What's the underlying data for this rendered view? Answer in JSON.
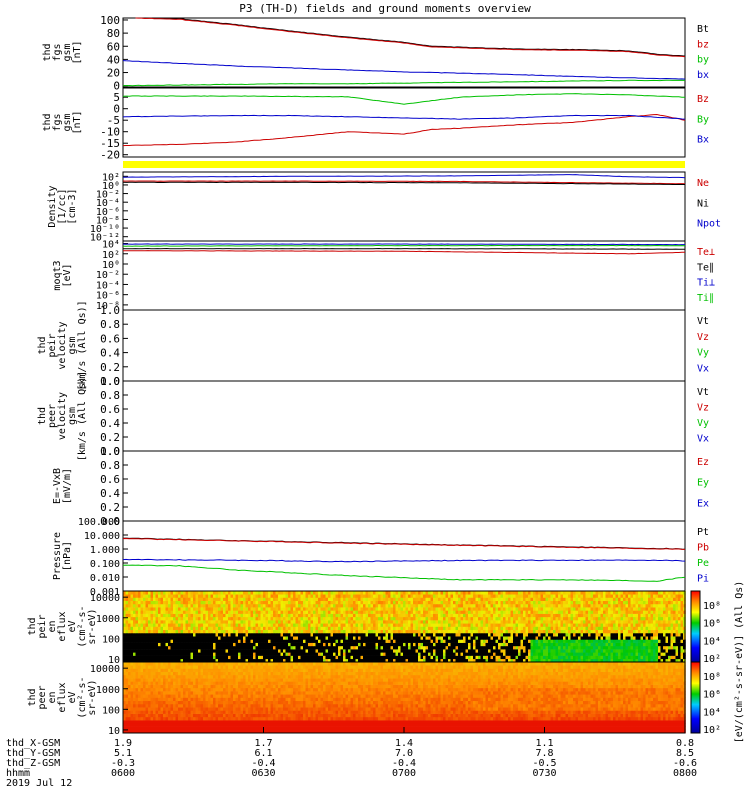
{
  "title": "P3 (TH-D) fields and ground moments overview",
  "colors": {
    "black": "#000000",
    "red": "#cc0000",
    "green": "#00c000",
    "blue": "#0000cc",
    "yellow": "#ffff00"
  },
  "chart_data": [
    {
      "type": "line",
      "id": "fgs-mag",
      "ylabel": [
        "thd",
        "fgs",
        "gsm",
        "[nT]"
      ],
      "yticks": [
        0,
        20,
        40,
        60,
        80,
        100
      ],
      "ylim": [
        -2,
        103
      ],
      "legend": [
        {
          "label": "Bt",
          "color": "black"
        },
        {
          "label": "bz",
          "color": "red"
        },
        {
          "label": "by",
          "color": "green"
        },
        {
          "label": "bx",
          "color": "blue"
        }
      ],
      "series": [
        {
          "name": "Bt",
          "color": "black",
          "x": [
            0.02,
            0.1,
            0.2,
            0.3,
            0.4,
            0.5,
            0.55,
            0.62,
            0.7,
            0.8,
            0.9,
            0.95,
            1.0
          ],
          "y": [
            103,
            102,
            93,
            83,
            74,
            66,
            60,
            58,
            56,
            55,
            53,
            48,
            45
          ]
        },
        {
          "name": "bz",
          "color": "red",
          "x": [
            0.02,
            0.1,
            0.2,
            0.3,
            0.4,
            0.5,
            0.55,
            0.62,
            0.7,
            0.8,
            0.9,
            0.95,
            1.0
          ],
          "y": [
            103,
            101,
            92,
            82,
            73,
            65,
            59,
            57,
            55,
            54,
            52,
            47,
            44
          ]
        },
        {
          "name": "by",
          "color": "green",
          "x": [
            0,
            0.1,
            0.2,
            0.3,
            0.4,
            0.5,
            0.6,
            0.7,
            0.8,
            0.9,
            1.0
          ],
          "y": [
            0,
            1,
            2,
            3,
            3,
            4,
            5,
            6,
            7,
            8,
            8
          ]
        },
        {
          "name": "bx",
          "color": "blue",
          "x": [
            0,
            0.1,
            0.2,
            0.3,
            0.4,
            0.5,
            0.6,
            0.7,
            0.8,
            0.9,
            1.0
          ],
          "y": [
            38,
            34,
            30,
            27,
            24,
            21,
            19,
            17,
            14,
            12,
            10
          ]
        }
      ]
    },
    {
      "type": "line",
      "id": "fgs-mag2",
      "ylabel": [
        "thd",
        "fgs",
        "gsm",
        "[nT]"
      ],
      "yticks": [
        -20,
        -15,
        -10,
        -5,
        0,
        5
      ],
      "ylim": [
        -21,
        9
      ],
      "legend": [
        {
          "label": "Bz",
          "color": "red"
        },
        {
          "label": "By",
          "color": "green"
        },
        {
          "label": "Bx",
          "color": "blue"
        }
      ],
      "series": [
        {
          "name": "Bz",
          "color": "red",
          "x": [
            0,
            0.1,
            0.2,
            0.3,
            0.4,
            0.5,
            0.55,
            0.6,
            0.7,
            0.8,
            0.9,
            0.95,
            1.0
          ],
          "y": [
            -16,
            -15.5,
            -14.5,
            -12.5,
            -10,
            -11,
            -9,
            -8.5,
            -7,
            -6,
            -3.5,
            -2.5,
            -5
          ]
        },
        {
          "name": "By",
          "color": "green",
          "x": [
            0,
            0.1,
            0.2,
            0.3,
            0.4,
            0.5,
            0.6,
            0.7,
            0.8,
            0.9,
            1.0
          ],
          "y": [
            5.5,
            5.5,
            5.5,
            5.3,
            5.2,
            2,
            5,
            6,
            6.5,
            6,
            5
          ]
        },
        {
          "name": "Bx",
          "color": "blue",
          "x": [
            0,
            0.1,
            0.2,
            0.3,
            0.4,
            0.5,
            0.6,
            0.7,
            0.8,
            0.9,
            1.0
          ],
          "y": [
            -3.5,
            -3.2,
            -3,
            -3,
            -3.5,
            -4,
            -4.5,
            -4,
            -3,
            -3,
            -4.5
          ]
        }
      ]
    },
    {
      "type": "line",
      "id": "density",
      "ylabel": [
        "Density",
        "[1/cc]",
        "[cm-3]"
      ],
      "ylog": true,
      "yticks": [
        "10²",
        "10⁰",
        "10⁻²",
        "10⁻⁴",
        "10⁻⁶",
        "10⁻⁸",
        "10⁻¹⁰",
        "10⁻¹²"
      ],
      "ylim_exp": [
        -13,
        3
      ],
      "legend": [
        {
          "label": "Ne",
          "color": "red"
        },
        {
          "label": "Ni",
          "color": "black"
        },
        {
          "label": "Npot",
          "color": "blue"
        }
      ],
      "series": [
        {
          "name": "Npot",
          "color": "blue",
          "x": [
            0,
            0.3,
            0.6,
            0.8,
            0.9,
            1.0
          ],
          "y": [
            1.8,
            2.0,
            2.1,
            2.4,
            1.9,
            1.7
          ]
        },
        {
          "name": "Ne",
          "color": "red",
          "x": [
            0,
            0.3,
            0.6,
            0.9,
            1.0
          ],
          "y": [
            0.9,
            0.9,
            0.8,
            0.4,
            0.3
          ]
        },
        {
          "name": "Ni",
          "color": "black",
          "x": [
            0,
            0.3,
            0.6,
            0.9,
            1.0
          ],
          "y": [
            0.6,
            0.6,
            0.5,
            0.2,
            0.1
          ]
        }
      ]
    },
    {
      "type": "line",
      "id": "temperature",
      "ylabel": [
        "moqt3",
        "[eV]"
      ],
      "ylog": true,
      "yticks": [
        "10⁴",
        "10²",
        "10⁰",
        "10⁻²",
        "10⁻⁴",
        "10⁻⁶",
        "10⁻⁸"
      ],
      "ylim_exp": [
        -9,
        4.5
      ],
      "legend": [
        {
          "label": "Te⊥",
          "color": "red"
        },
        {
          "label": "Te∥",
          "color": "black"
        },
        {
          "label": "Ti⊥",
          "color": "blue"
        },
        {
          "label": "Ti∥",
          "color": "green"
        }
      ],
      "series": [
        {
          "name": "Ti⊥",
          "color": "blue",
          "x": [
            0,
            0.5,
            1.0
          ],
          "y": [
            3.9,
            3.9,
            3.8
          ]
        },
        {
          "name": "Ti∥",
          "color": "green",
          "x": [
            0,
            0.5,
            1.0
          ],
          "y": [
            3.5,
            3.6,
            3.6
          ]
        },
        {
          "name": "Te∥",
          "color": "black",
          "x": [
            0,
            0.5,
            1.0
          ],
          "y": [
            3.0,
            3.0,
            2.9
          ]
        },
        {
          "name": "Te⊥",
          "color": "red",
          "x": [
            0,
            0.5,
            0.9,
            1.0
          ],
          "y": [
            2.6,
            2.5,
            2.0,
            2.3
          ]
        }
      ]
    },
    {
      "type": "line",
      "id": "peir-velocity",
      "ylabel": [
        "thd",
        "peir",
        "velocity",
        "gsm",
        "[km/s (All Qs)]"
      ],
      "yticks": [
        0.0,
        0.2,
        0.4,
        0.6,
        0.8,
        1.0
      ],
      "ylim": [
        0,
        1
      ],
      "legend": [
        {
          "label": "Vt",
          "color": "black"
        },
        {
          "label": "Vz",
          "color": "red"
        },
        {
          "label": "Vy",
          "color": "green"
        },
        {
          "label": "Vx",
          "color": "blue"
        }
      ],
      "series": []
    },
    {
      "type": "line",
      "id": "peer-velocity",
      "ylabel": [
        "thd",
        "peer",
        "velocity",
        "gsm",
        "[km/s (All Qs)]"
      ],
      "yticks": [
        0.0,
        0.2,
        0.4,
        0.6,
        0.8,
        1.0
      ],
      "ylim": [
        0,
        1
      ],
      "legend": [
        {
          "label": "Vt",
          "color": "black"
        },
        {
          "label": "Vz",
          "color": "red"
        },
        {
          "label": "Vy",
          "color": "green"
        },
        {
          "label": "Vx",
          "color": "blue"
        }
      ],
      "series": []
    },
    {
      "type": "line",
      "id": "efield",
      "ylabel": [
        "E=-VxB",
        "[mV/m]"
      ],
      "yticks": [
        0.0,
        0.2,
        0.4,
        0.6,
        0.8,
        1.0
      ],
      "ylim": [
        0,
        1
      ],
      "legend": [
        {
          "label": "Ez",
          "color": "red"
        },
        {
          "label": "Ey",
          "color": "green"
        },
        {
          "label": "Ex",
          "color": "blue"
        }
      ],
      "series": []
    },
    {
      "type": "line",
      "id": "pressure",
      "ylabel": [
        "Pressure",
        "[nPa]"
      ],
      "ylog": true,
      "yticks": [
        "100.000",
        "10.000",
        "1.000",
        "0.100",
        "0.010",
        "0.001"
      ],
      "ylim_exp": [
        -3,
        2
      ],
      "legend": [
        {
          "label": "Pt",
          "color": "black"
        },
        {
          "label": "Pb",
          "color": "red"
        },
        {
          "label": "Pe",
          "color": "green"
        },
        {
          "label": "Pi",
          "color": "blue"
        }
      ],
      "series": [
        {
          "name": "Pt",
          "color": "black",
          "x": [
            0,
            0.2,
            0.4,
            0.6,
            0.8,
            1.0
          ],
          "y": [
            0.78,
            0.6,
            0.45,
            0.28,
            0.15,
            0.0
          ]
        },
        {
          "name": "Pb",
          "color": "red",
          "x": [
            0,
            0.2,
            0.4,
            0.6,
            0.8,
            1.0
          ],
          "y": [
            0.75,
            0.58,
            0.42,
            0.26,
            0.12,
            -0.02
          ]
        },
        {
          "name": "Pi",
          "color": "blue",
          "x": [
            0,
            0.2,
            0.4,
            0.5,
            0.6,
            0.8,
            0.95,
            1.0
          ],
          "y": [
            -0.75,
            -0.8,
            -0.9,
            -0.85,
            -0.82,
            -0.8,
            -0.8,
            -0.85
          ]
        },
        {
          "name": "Pe",
          "color": "green",
          "x": [
            0,
            0.1,
            0.2,
            0.4,
            0.6,
            0.8,
            0.95,
            1.0
          ],
          "y": [
            -1.15,
            -1.2,
            -1.5,
            -1.9,
            -2.2,
            -2.2,
            -2.3,
            -2.0
          ]
        }
      ]
    },
    {
      "type": "heatmap",
      "id": "peir-eflux",
      "ylabel": [
        "thd",
        "peir",
        "en",
        "eflux",
        "eV",
        "(cm²-s-",
        "sr-eV)"
      ],
      "yticks": [
        "10000",
        "1000",
        "100",
        "10"
      ],
      "ylim_exp": [
        0.85,
        4.3
      ]
    },
    {
      "type": "heatmap",
      "id": "peer-eflux",
      "ylabel": [
        "thd",
        "peer",
        "en",
        "eflux",
        "eV",
        "(cm²-s-",
        "sr-eV)"
      ],
      "yticks": [
        "10000",
        "1000",
        "100",
        "10"
      ],
      "ylim_exp": [
        0.85,
        4.3
      ]
    }
  ],
  "colorbar": {
    "label": "[eV/(cm²-s-sr-eV)] (All Qs)",
    "ticks1": [
      "10⁸",
      "10⁶",
      "10⁴",
      "10²"
    ],
    "ticks2": [
      "10⁸",
      "10⁶",
      "10⁴",
      "10²"
    ]
  },
  "xaxis": {
    "rows": [
      {
        "label": "thd_X-GSM",
        "values": [
          "1.9",
          "1.7",
          "1.4",
          "1.1",
          "0.8"
        ]
      },
      {
        "label": "thd_Y-GSM",
        "values": [
          "5.1",
          "6.1",
          "7.0",
          "7.8",
          "8.5"
        ]
      },
      {
        "label": "thd_Z-GSM",
        "values": [
          "-0.3",
          "-0.4",
          "-0.4",
          "-0.5",
          "-0.6"
        ]
      },
      {
        "label": "hhmm",
        "values": [
          "0600",
          "0630",
          "0700",
          "0730",
          "0800"
        ]
      }
    ],
    "date": "2019 Jul 12"
  }
}
